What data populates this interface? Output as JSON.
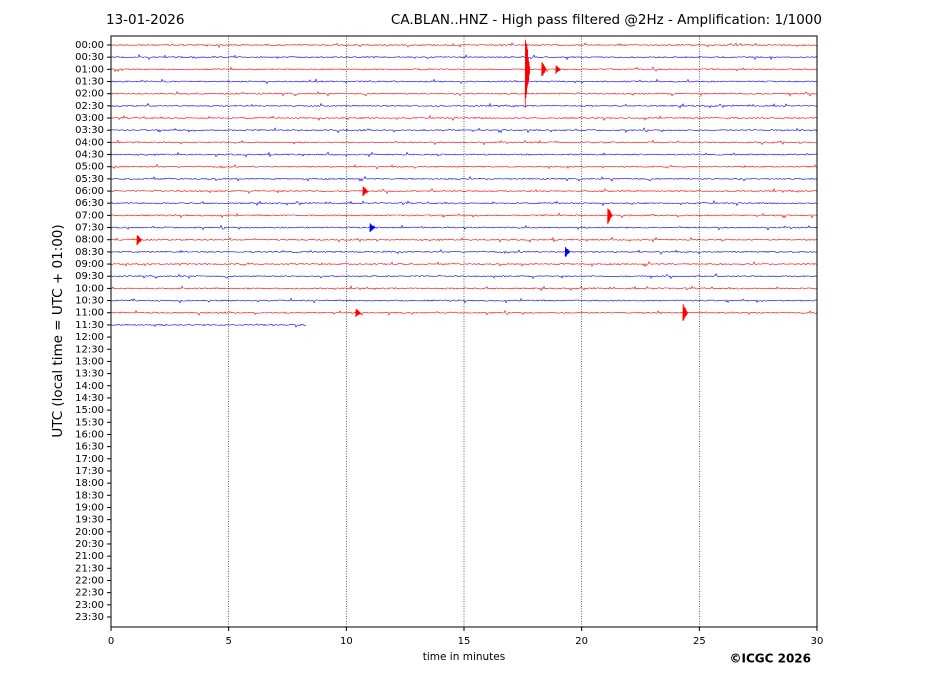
{
  "chart_data": {
    "type": "helicorder",
    "date": "13-01-2026",
    "title": "CA.BLAN..HNZ - High pass filtered @2Hz - Amplification: 1/1000",
    "xlabel": "time in minutes",
    "ylabel": "UTC (local time = UTC + 01:00)",
    "credit": "©ICGC 2026",
    "xlim": [
      0,
      30
    ],
    "xticks": [
      0,
      5,
      10,
      15,
      20,
      25,
      30
    ],
    "grid": true,
    "colors": [
      "#ff0000",
      "#0000ff"
    ],
    "rows": [
      "00:00",
      "00:30",
      "01:00",
      "01:30",
      "02:00",
      "02:30",
      "03:00",
      "03:30",
      "04:00",
      "04:30",
      "05:00",
      "05:30",
      "06:00",
      "06:30",
      "07:00",
      "07:30",
      "08:00",
      "08:30",
      "09:00",
      "09:30",
      "10:00",
      "10:30",
      "11:00",
      "11:30",
      "12:00",
      "12:30",
      "13:00",
      "13:30",
      "14:00",
      "14:30",
      "15:00",
      "15:30",
      "16:00",
      "16:30",
      "17:00",
      "17:30",
      "18:00",
      "18:30",
      "19:00",
      "19:30",
      "20:00",
      "20:30",
      "21:00",
      "21:30",
      "22:00",
      "22:30",
      "23:00",
      "23:30"
    ],
    "recorded_minutes": [
      30,
      30,
      30,
      30,
      30,
      30,
      30,
      30,
      30,
      30,
      30,
      30,
      30,
      30,
      30,
      30,
      30,
      30,
      30,
      30,
      30,
      30,
      30,
      8.3
    ],
    "events": [
      {
        "row": 2,
        "minute": 17.6,
        "amplitude": 3.5
      },
      {
        "row": 2,
        "minute": 18.3,
        "amplitude": 0.7
      },
      {
        "row": 2,
        "minute": 18.9,
        "amplitude": 0.4
      },
      {
        "row": 12,
        "minute": 10.7,
        "amplitude": 0.5
      },
      {
        "row": 14,
        "minute": 21.1,
        "amplitude": 0.8
      },
      {
        "row": 15,
        "minute": 11.0,
        "amplitude": 0.4
      },
      {
        "row": 16,
        "minute": 1.1,
        "amplitude": 0.5
      },
      {
        "row": 17,
        "minute": 19.3,
        "amplitude": 0.5
      },
      {
        "row": 22,
        "minute": 24.3,
        "amplitude": 0.9
      },
      {
        "row": 22,
        "minute": 10.4,
        "amplitude": 0.4
      }
    ]
  }
}
